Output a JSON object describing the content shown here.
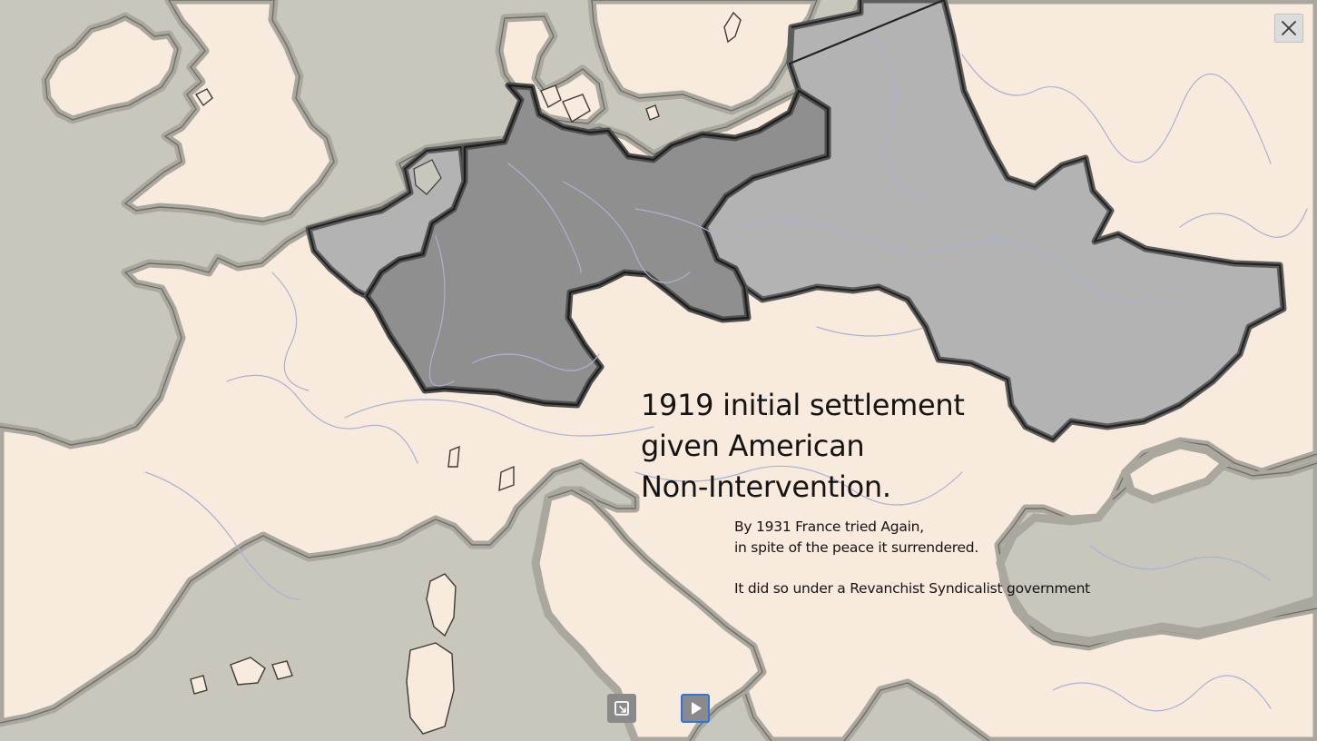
{
  "map": {
    "headline_lines": [
      "1919 initial settlement",
      "given American",
      "Non-Intervention."
    ],
    "note_lines": [
      "By 1931 France tried Again,",
      "in spite of the peace it surrendered.",
      "It did so under a Revanchist Syndicalist government"
    ],
    "colors": {
      "sea": "#c9c6bc",
      "land": "#f9eade",
      "coast_halo": "#a9a79e",
      "region_light": "#b3b3b3",
      "region_dark": "#8f8f8f",
      "border": "#232323",
      "river": "#a9b2d4"
    }
  },
  "controls": {
    "close_icon": "close-icon",
    "fit_icon": "fit-to-screen-icon",
    "play_icon": "play-icon",
    "play_accent": "#2f72e3"
  }
}
